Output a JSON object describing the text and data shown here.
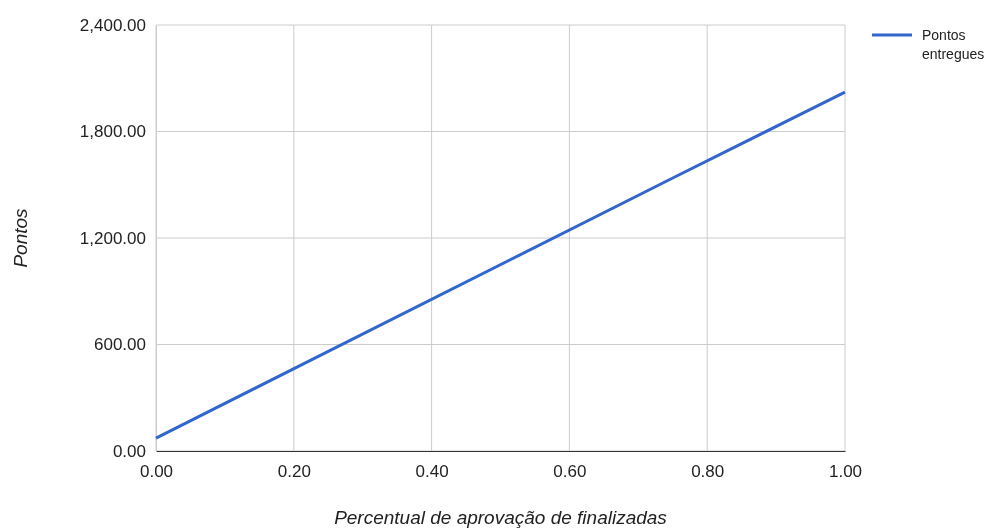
{
  "chart_data": {
    "type": "line",
    "xlabel": "Percentual de aprovação de finalizadas",
    "ylabel": "Pontos",
    "x": [
      0,
      0.75,
      1
    ],
    "series": [
      {
        "name": "Pontos entregues",
        "color": "#3366cc",
        "values": [
          73,
          1538,
          2022
        ]
      }
    ],
    "xlim": [
      0,
      1
    ],
    "ylim": [
      0,
      2400
    ],
    "xticks": [
      {
        "value": 0,
        "label": "0.00"
      },
      {
        "value": 0.2,
        "label": "0.20"
      },
      {
        "value": 0.4,
        "label": "0.40"
      },
      {
        "value": 0.6,
        "label": "0.60"
      },
      {
        "value": 0.8,
        "label": "0.80"
      },
      {
        "value": 1,
        "label": "1.00"
      }
    ],
    "yticks": [
      {
        "value": 0,
        "label": "0.00"
      },
      {
        "value": 600,
        "label": "600.00"
      },
      {
        "value": 1200,
        "label": "1,200.00"
      },
      {
        "value": 1800,
        "label": "1,800.00"
      },
      {
        "value": 2400,
        "label": "2,400.00"
      }
    ],
    "grid": true,
    "legend": "top right",
    "marker": "none",
    "line_style": "solid"
  }
}
